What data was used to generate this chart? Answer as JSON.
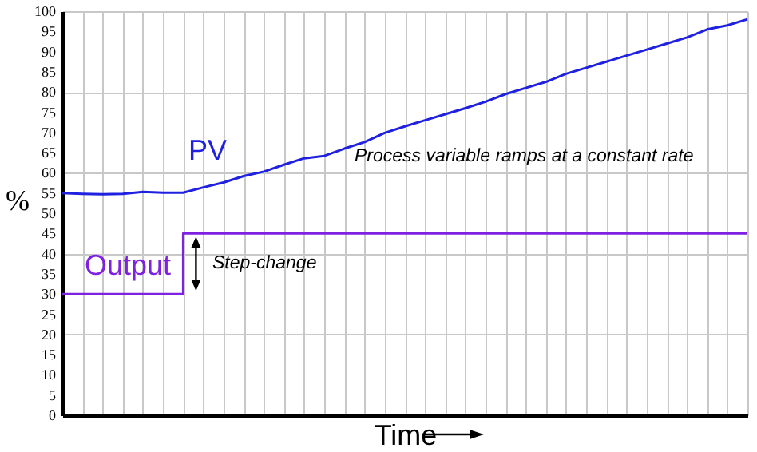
{
  "chart_data": {
    "type": "line",
    "xlabel": "Time",
    "ylabel": "%",
    "categories": [
      null,
      null,
      null,
      null,
      null,
      null,
      null,
      null,
      null,
      null,
      null,
      null,
      null,
      null,
      null,
      null,
      null,
      null,
      null,
      null,
      null,
      null,
      null,
      null,
      null,
      null,
      null,
      null,
      null,
      null,
      null,
      null,
      null,
      null,
      null
    ],
    "ylim": [
      0,
      100
    ],
    "yticks": [
      0,
      5,
      10,
      15,
      20,
      25,
      30,
      35,
      40,
      45,
      50,
      55,
      60,
      65,
      70,
      75,
      80,
      85,
      90,
      95,
      100
    ],
    "grid": true,
    "annotations": [
      "Process variable ramps at a constant rate",
      "Step-change"
    ],
    "series": [
      {
        "name": "PV",
        "color": "#2020e0",
        "values": [
          55,
          54.8,
          54.7,
          54.8,
          55.3,
          55.1,
          55.1,
          56.4,
          57.6,
          59.2,
          60.3,
          62,
          63.6,
          64.2,
          66,
          67.6,
          69.9,
          71.5,
          73,
          74.5,
          76,
          77.6,
          79.5,
          81,
          82.5,
          84.5,
          86,
          87.5,
          89,
          90.5,
          92,
          93.5,
          95.5,
          96.5,
          98
        ]
      },
      {
        "name": "Output",
        "type": "step",
        "color": "#8020e0",
        "values": [
          30,
          30,
          30,
          30,
          30,
          30,
          45,
          45,
          45,
          45,
          45,
          45,
          45,
          45,
          45,
          45,
          45,
          45,
          45,
          45,
          45,
          45,
          45,
          45,
          45,
          45,
          45,
          45,
          45,
          45,
          45,
          45,
          45,
          45,
          45
        ]
      }
    ]
  }
}
